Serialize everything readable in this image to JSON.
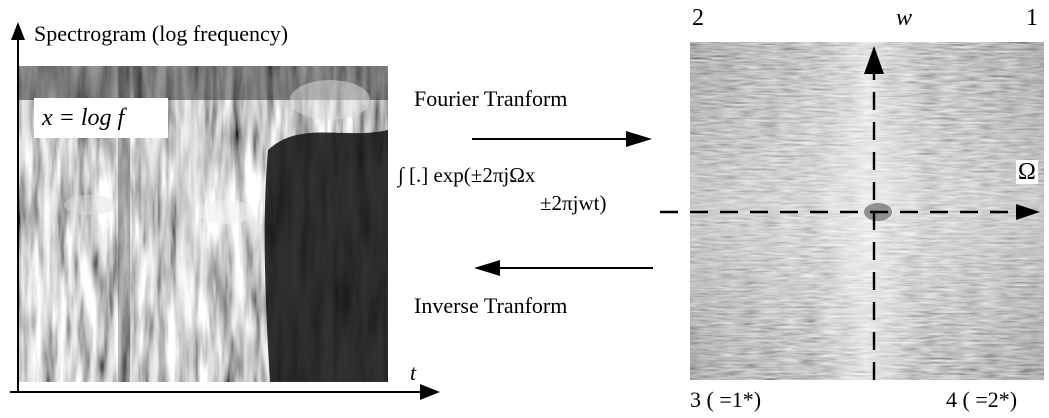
{
  "left_panel": {
    "title": "Spectrogram (log frequency)",
    "inset_label_prefix": "x = log",
    "inset_label_suffix": "f",
    "time_axis_label": "t"
  },
  "middle": {
    "forward_label": "Fourier Tranform",
    "formula_line1": "∫ [.] exp(±2πjΩx",
    "formula_line2": "±2πjwt)",
    "inverse_label": "Inverse Tranform"
  },
  "right_panel": {
    "quadrant_top_left": "2",
    "quadrant_top_right": "1",
    "quadrant_bottom_left": "3 ( =1*)",
    "quadrant_bottom_right": "4 ( =2*)",
    "vertical_axis_label": "w",
    "horizontal_axis_label": "Ω"
  },
  "colors": {
    "ink": "#000000",
    "spectrogram_dark": "#1a1a1a",
    "spectrogram_light": "#e6e6e6",
    "transform_gray": "#a8a8a8",
    "transform_light": "#e2e2e2"
  }
}
